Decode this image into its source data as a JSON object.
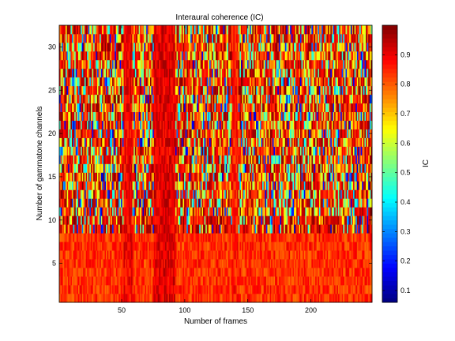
{
  "chart_data": {
    "type": "heatmap",
    "title": "Interaural coherence (IC)",
    "xlabel": "Number of frames",
    "ylabel": "Number of gammatone channels",
    "xlim": [
      0.5,
      248.5
    ],
    "ylim": [
      0.5,
      32.5
    ],
    "n_frames": 248,
    "n_channels": 32,
    "x_ticks": [
      50,
      100,
      150,
      200
    ],
    "y_ticks": [
      5,
      10,
      15,
      20,
      25,
      30
    ],
    "colormap": "jet",
    "colorbar": {
      "label": "IC",
      "clim": [
        0.06,
        1.0
      ],
      "ticks": [
        0.1,
        0.2,
        0.3,
        0.4,
        0.5,
        0.6,
        0.7,
        0.8,
        0.9
      ],
      "location": "right"
    },
    "grid": false,
    "regions": [
      {
        "description": "high-coherence vertical band",
        "frames": [
          76,
          92
        ],
        "ic_approx": 0.97
      },
      {
        "description": "high-coherence band",
        "frames": [
          52,
          58
        ],
        "ic_approx": 0.95
      },
      {
        "description": "mostly high-coherence low channels",
        "channels": [
          1,
          8
        ],
        "ic_approx": 0.9
      },
      {
        "description": "high-coherence column",
        "frames": [
          138,
          142
        ],
        "ic_approx": 0.92
      }
    ]
  }
}
